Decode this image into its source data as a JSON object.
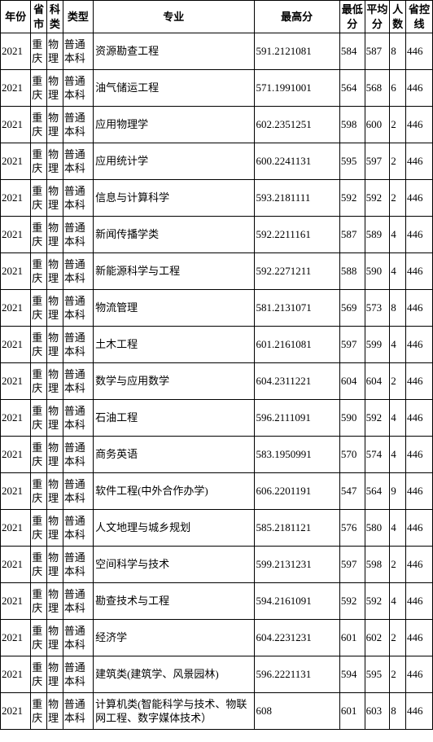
{
  "headers": {
    "year": "年份",
    "province": "省市",
    "subject": "科类",
    "type": "类型",
    "major": "专业",
    "max": "最高分",
    "min": "最低分",
    "avg": "平均分",
    "count": "人数",
    "line": "省控线"
  },
  "rows": [
    {
      "year": "2021",
      "province": "重庆",
      "subject": "物理",
      "type": "普通本科",
      "major": "资源勘查工程",
      "max": "591.2121081",
      "min": "584",
      "avg": "587",
      "count": "8",
      "line": "446"
    },
    {
      "year": "2021",
      "province": "重庆",
      "subject": "物理",
      "type": "普通本科",
      "major": "油气储运工程",
      "max": "571.1991001",
      "min": "564",
      "avg": "568",
      "count": "6",
      "line": "446"
    },
    {
      "year": "2021",
      "province": "重庆",
      "subject": "物理",
      "type": "普通本科",
      "major": "应用物理学",
      "max": "602.2351251",
      "min": "598",
      "avg": "600",
      "count": "2",
      "line": "446"
    },
    {
      "year": "2021",
      "province": "重庆",
      "subject": "物理",
      "type": "普通本科",
      "major": "应用统计学",
      "max": "600.2241131",
      "min": "595",
      "avg": "597",
      "count": "2",
      "line": "446"
    },
    {
      "year": "2021",
      "province": "重庆",
      "subject": "物理",
      "type": "普通本科",
      "major": "信息与计算科学",
      "max": "593.2181111",
      "min": "592",
      "avg": "592",
      "count": "2",
      "line": "446"
    },
    {
      "year": "2021",
      "province": "重庆",
      "subject": "物理",
      "type": "普通本科",
      "major": "新闻传播学类",
      "max": "592.2211161",
      "min": "587",
      "avg": "589",
      "count": "4",
      "line": "446"
    },
    {
      "year": "2021",
      "province": "重庆",
      "subject": "物理",
      "type": "普通本科",
      "major": "新能源科学与工程",
      "max": "592.2271211",
      "min": "588",
      "avg": "590",
      "count": "4",
      "line": "446"
    },
    {
      "year": "2021",
      "province": "重庆",
      "subject": "物理",
      "type": "普通本科",
      "major": "物流管理",
      "max": "581.2131071",
      "min": "569",
      "avg": "573",
      "count": "8",
      "line": "446"
    },
    {
      "year": "2021",
      "province": "重庆",
      "subject": "物理",
      "type": "普通本科",
      "major": "土木工程",
      "max": "601.2161081",
      "min": "597",
      "avg": "599",
      "count": "4",
      "line": "446"
    },
    {
      "year": "2021",
      "province": "重庆",
      "subject": "物理",
      "type": "普通本科",
      "major": "数学与应用数学",
      "max": "604.2311221",
      "min": "604",
      "avg": "604",
      "count": "2",
      "line": "446"
    },
    {
      "year": "2021",
      "province": "重庆",
      "subject": "物理",
      "type": "普通本科",
      "major": "石油工程",
      "max": "596.2111091",
      "min": "590",
      "avg": "592",
      "count": "4",
      "line": "446"
    },
    {
      "year": "2021",
      "province": "重庆",
      "subject": "物理",
      "type": "普通本科",
      "major": "商务英语",
      "max": "583.1950991",
      "min": "570",
      "avg": "574",
      "count": "4",
      "line": "446"
    },
    {
      "year": "2021",
      "province": "重庆",
      "subject": "物理",
      "type": "普通本科",
      "major": "软件工程(中外合作办学)",
      "max": "606.2201191",
      "min": "547",
      "avg": "564",
      "count": "9",
      "line": "446"
    },
    {
      "year": "2021",
      "province": "重庆",
      "subject": "物理",
      "type": "普通本科",
      "major": "人文地理与城乡规划",
      "max": "585.2181121",
      "min": "576",
      "avg": "580",
      "count": "4",
      "line": "446"
    },
    {
      "year": "2021",
      "province": "重庆",
      "subject": "物理",
      "type": "普通本科",
      "major": "空间科学与技术",
      "max": "599.2131231",
      "min": "597",
      "avg": "598",
      "count": "2",
      "line": "446"
    },
    {
      "year": "2021",
      "province": "重庆",
      "subject": "物理",
      "type": "普通本科",
      "major": "勘查技术与工程",
      "max": "594.2161091",
      "min": "592",
      "avg": "592",
      "count": "4",
      "line": "446"
    },
    {
      "year": "2021",
      "province": "重庆",
      "subject": "物理",
      "type": "普通本科",
      "major": "经济学",
      "max": "604.2231231",
      "min": "601",
      "avg": "602",
      "count": "2",
      "line": "446"
    },
    {
      "year": "2021",
      "province": "重庆",
      "subject": "物理",
      "type": "普通本科",
      "major": "建筑类(建筑学、风景园林)",
      "max": "596.2221131",
      "min": "594",
      "avg": "595",
      "count": "2",
      "line": "446"
    },
    {
      "year": "2021",
      "province": "重庆",
      "subject": "物理",
      "type": "普通本科",
      "major": "计算机类(智能科学与技术、物联网工程、数字媒体技术）",
      "max": "608",
      "min": "601",
      "avg": "603",
      "count": "8",
      "line": "446"
    }
  ]
}
